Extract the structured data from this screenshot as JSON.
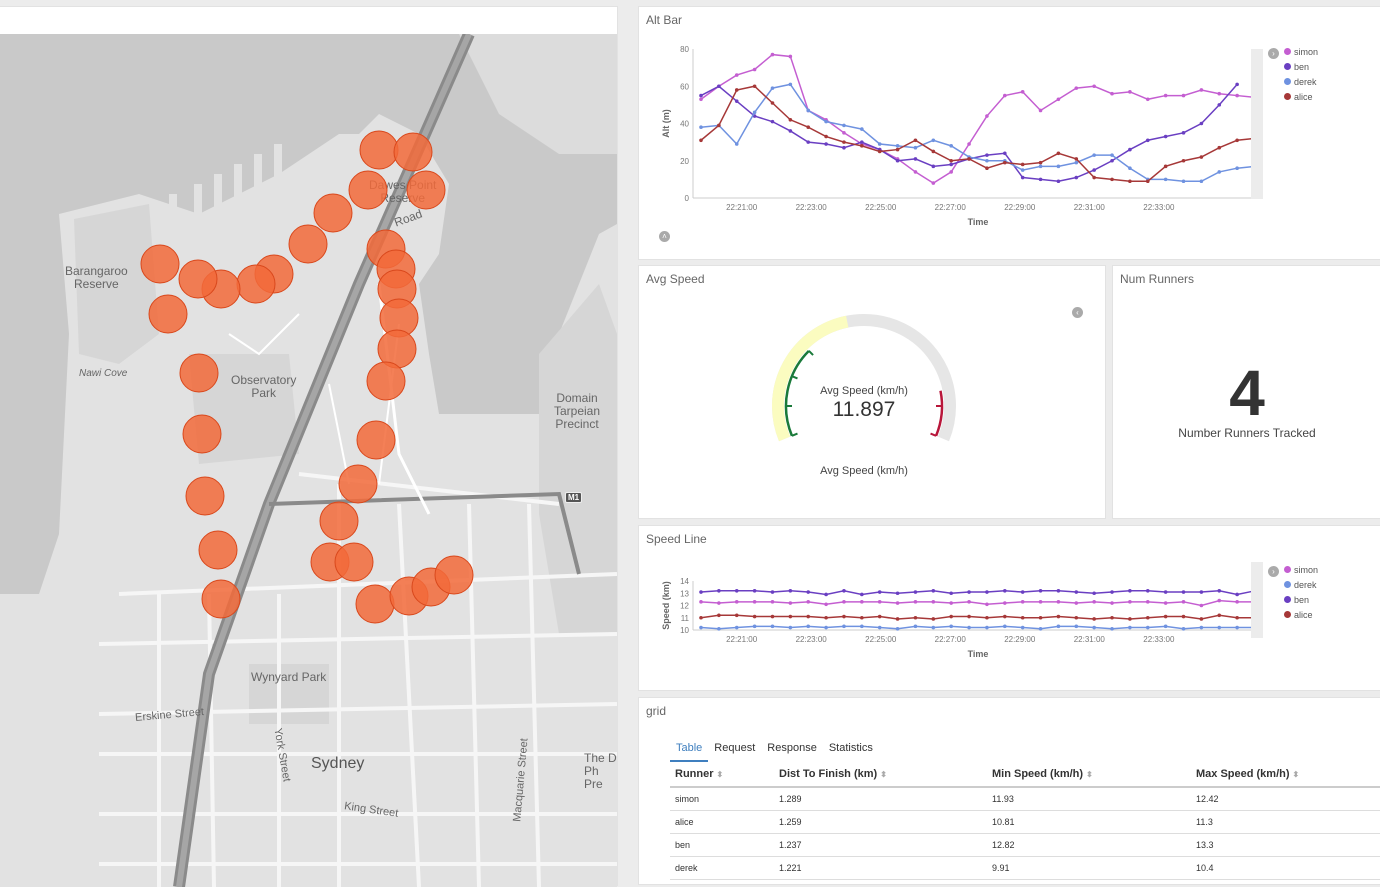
{
  "map": {
    "labels": {
      "barangaroo": "Barangaroo\nReserve",
      "nawi": "Nawi Cove",
      "observatory": "Observatory\nPark",
      "dawes": "Dawes Point\nReserve",
      "road": "Road",
      "domain": "Domain\nTarpeian\nPrecinct",
      "wynyard": "Wynyard Park",
      "sydney": "Sydney",
      "erskine": "Erskine Street",
      "york": "York Street",
      "king": "King Street",
      "macquarie": "Macquarie Street",
      "theD": "The D\nPh\nPre",
      "m1": "M1"
    },
    "marker_color": "#f26a3a"
  },
  "alt_bar": {
    "title": "Alt Bar",
    "chart_data": {
      "type": "line",
      "xlabel": "Time",
      "ylabel": "Alt (m)",
      "ylim": [
        0,
        80
      ],
      "yticks": [
        "0",
        "20",
        "40",
        "60",
        "80"
      ],
      "xticks": [
        "22:21:00",
        "22:23:00",
        "22:25:00",
        "22:27:00",
        "22:29:00",
        "22:31:00",
        "22:33:00"
      ],
      "series": [
        {
          "name": "simon",
          "color": "#c45ed1",
          "values": [
            53,
            60,
            66,
            69,
            77,
            76,
            47,
            42,
            35,
            29,
            26,
            21,
            14,
            8,
            14,
            29,
            44,
            55,
            57,
            47,
            53,
            59,
            60,
            56,
            57,
            53,
            55,
            55,
            58,
            56,
            55,
            54
          ]
        },
        {
          "name": "ben",
          "color": "#6a3fc2",
          "values": [
            55,
            60,
            52,
            44,
            41,
            36,
            30,
            29,
            27,
            30,
            26,
            20,
            21,
            17,
            18,
            21,
            23,
            24,
            11,
            10,
            9,
            11,
            15,
            20,
            26,
            31,
            33,
            35,
            40,
            50,
            61,
            null
          ]
        },
        {
          "name": "derek",
          "color": "#6f92e0",
          "values": [
            38,
            39,
            29,
            46,
            59,
            61,
            47,
            41,
            39,
            37,
            29,
            28,
            27,
            31,
            28,
            22,
            20,
            20,
            15,
            17,
            17,
            19,
            23,
            23,
            16,
            10,
            10,
            9,
            9,
            14,
            16,
            17
          ]
        },
        {
          "name": "alice",
          "color": "#a63838",
          "values": [
            31,
            39,
            58,
            60,
            51,
            42,
            38,
            33,
            30,
            28,
            25,
            26,
            31,
            25,
            20,
            21,
            16,
            19,
            18,
            19,
            24,
            21,
            11,
            10,
            9,
            9,
            17,
            20,
            22,
            27,
            31,
            32
          ]
        }
      ]
    }
  },
  "avg_speed": {
    "title": "Avg Speed",
    "label_top": "Avg Speed (km/h)",
    "value": "11.897",
    "label_bottom": "Avg Speed (km/h)",
    "gauge_fraction": 0.45
  },
  "num_runners": {
    "title": "Num Runners",
    "value": "4",
    "label": "Number Runners Tracked"
  },
  "speed_line": {
    "title": "Speed Line",
    "chart_data": {
      "type": "line",
      "xlabel": "Time",
      "ylabel": "Speed (km)",
      "ylim": [
        10,
        14
      ],
      "yticks": [
        "10",
        "11",
        "12",
        "13",
        "14"
      ],
      "xticks": [
        "22:21:00",
        "22:23:00",
        "22:25:00",
        "22:27:00",
        "22:29:00",
        "22:31:00",
        "22:33:00"
      ],
      "series": [
        {
          "name": "simon",
          "color": "#c45ed1",
          "values": [
            12.3,
            12.2,
            12.3,
            12.3,
            12.3,
            12.2,
            12.3,
            12.1,
            12.3,
            12.3,
            12.3,
            12.2,
            12.3,
            12.3,
            12.2,
            12.3,
            12.1,
            12.2,
            12.3,
            12.3,
            12.3,
            12.2,
            12.3,
            12.2,
            12.3,
            12.3,
            12.2,
            12.3,
            12.0,
            12.4,
            12.3,
            12.3
          ]
        },
        {
          "name": "derek",
          "color": "#6f92e0",
          "values": [
            10.2,
            10.1,
            10.2,
            10.3,
            10.3,
            10.2,
            10.3,
            10.2,
            10.3,
            10.3,
            10.2,
            10.1,
            10.3,
            10.2,
            10.3,
            10.2,
            10.2,
            10.3,
            10.2,
            10.1,
            10.3,
            10.3,
            10.2,
            10.1,
            10.2,
            10.2,
            10.3,
            10.1,
            10.2,
            10.2,
            10.2,
            10.2
          ]
        },
        {
          "name": "ben",
          "color": "#6a3fc2",
          "values": [
            13.1,
            13.2,
            13.2,
            13.2,
            13.1,
            13.2,
            13.1,
            12.9,
            13.2,
            12.9,
            13.1,
            13.0,
            13.1,
            13.2,
            13.0,
            13.1,
            13.1,
            13.2,
            13.1,
            13.2,
            13.2,
            13.1,
            13.0,
            13.1,
            13.2,
            13.2,
            13.1,
            13.1,
            13.1,
            13.2,
            12.9,
            13.2
          ]
        },
        {
          "name": "alice",
          "color": "#a63838",
          "values": [
            11.0,
            11.2,
            11.2,
            11.1,
            11.1,
            11.1,
            11.1,
            11.0,
            11.1,
            11.0,
            11.1,
            10.9,
            11.0,
            10.9,
            11.1,
            11.1,
            11.0,
            11.1,
            11.0,
            11.0,
            11.1,
            11.0,
            10.9,
            11.0,
            10.9,
            11.0,
            11.1,
            11.1,
            10.9,
            11.2,
            11.0,
            11.0
          ]
        }
      ]
    }
  },
  "grid": {
    "title": "grid",
    "tabs": [
      "Table",
      "Request",
      "Response",
      "Statistics"
    ],
    "columns": [
      "Runner",
      "Dist To Finish (km)",
      "Min Speed (km/h)",
      "Max Speed (km/h)"
    ],
    "rows": [
      [
        "simon",
        "1.289",
        "11.93",
        "12.42"
      ],
      [
        "alice",
        "1.259",
        "10.81",
        "11.3"
      ],
      [
        "ben",
        "1.237",
        "12.82",
        "13.3"
      ],
      [
        "derek",
        "1.221",
        "9.91",
        "10.4"
      ]
    ]
  }
}
